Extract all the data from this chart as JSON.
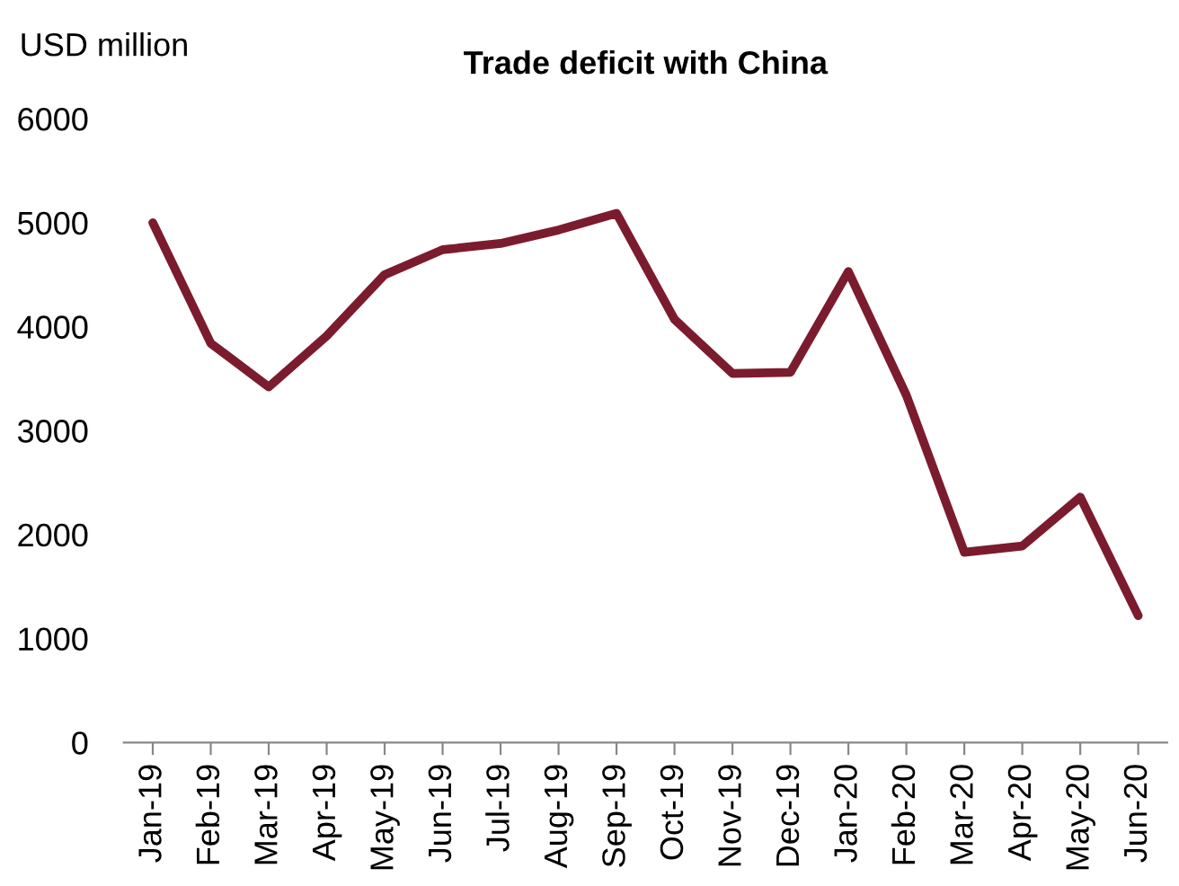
{
  "chart_data": {
    "type": "line",
    "title": "Trade deficit with China",
    "ylabel": "USD million",
    "categories": [
      "Jan-19",
      "Feb-19",
      "Mar-19",
      "Apr-19",
      "May-19",
      "Jun-19",
      "Jul-19",
      "Aug-19",
      "Sep-19",
      "Oct-19",
      "Nov-19",
      "Dec-19",
      "Jan-20",
      "Feb-20",
      "Mar-20",
      "Apr-20",
      "May-20",
      "Jun-20"
    ],
    "series": [
      {
        "color": "#7b1c2e",
        "values": [
          5000,
          3840,
          3420,
          3910,
          4500,
          4740,
          4800,
          4930,
          5090,
          4070,
          3550,
          3560,
          4530,
          3340,
          1830,
          1890,
          2360,
          1220
        ]
      }
    ],
    "ylim": [
      0,
      6000
    ],
    "yticks": [
      0,
      1000,
      2000,
      3000,
      4000,
      5000,
      6000
    ],
    "grid": false,
    "marker": "none",
    "line_style": "solid"
  }
}
